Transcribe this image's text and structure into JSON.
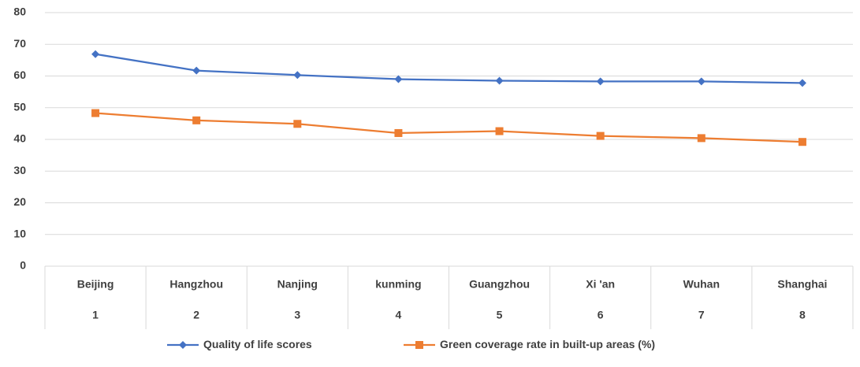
{
  "chart_data": {
    "type": "line",
    "categories": [
      "Beijing",
      "Hangzhou",
      "Nanjing",
      "kunming",
      "Guangzhou",
      "Xi 'an",
      "Wuhan",
      "Shanghai"
    ],
    "subcategories": [
      1,
      2,
      3,
      4,
      5,
      6,
      7,
      8
    ],
    "series": [
      {
        "name": "Quality of life scores",
        "color": "#4472c4",
        "marker": "diamond",
        "values": [
          66.9,
          61.7,
          60.3,
          59.0,
          58.5,
          58.3,
          58.3,
          57.8
        ]
      },
      {
        "name": "Green coverage rate in built-up areas (%)",
        "color": "#ed7d31",
        "marker": "square",
        "values": [
          48.3,
          46.0,
          44.9,
          42.0,
          42.6,
          41.1,
          40.4,
          39.2
        ]
      }
    ],
    "ylim": [
      0,
      80
    ],
    "yticks": [
      0,
      10,
      20,
      30,
      40,
      50,
      60,
      70,
      80
    ],
    "grid": true,
    "legend": "bottom"
  }
}
